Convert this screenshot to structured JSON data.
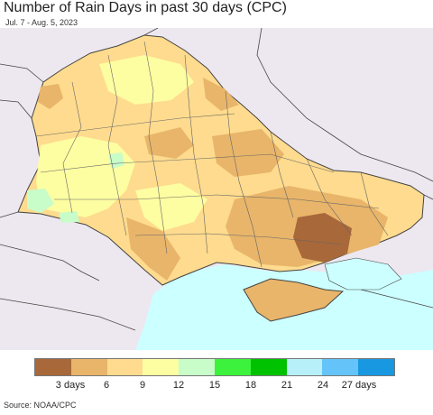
{
  "title": "Number of Rain Days in past 30 days (CPC)",
  "subtitle": "Jul. 7 - Aug. 5, 2023",
  "source": "Source: NOAA/CPC",
  "colors": {
    "sea": "#ccffff",
    "outside": "#ede8ef",
    "border": "#444444"
  },
  "legend": {
    "colors": [
      "#a8683a",
      "#e8b56a",
      "#fedb8e",
      "#fdfda2",
      "#c8fcc8",
      "#3cf23c",
      "#00c200",
      "#b8f0fa",
      "#64c4fa",
      "#1898e0"
    ],
    "labels": [
      "3 days",
      "6",
      "9",
      "12",
      "15",
      "18",
      "21",
      "24",
      "27 days"
    ]
  }
}
